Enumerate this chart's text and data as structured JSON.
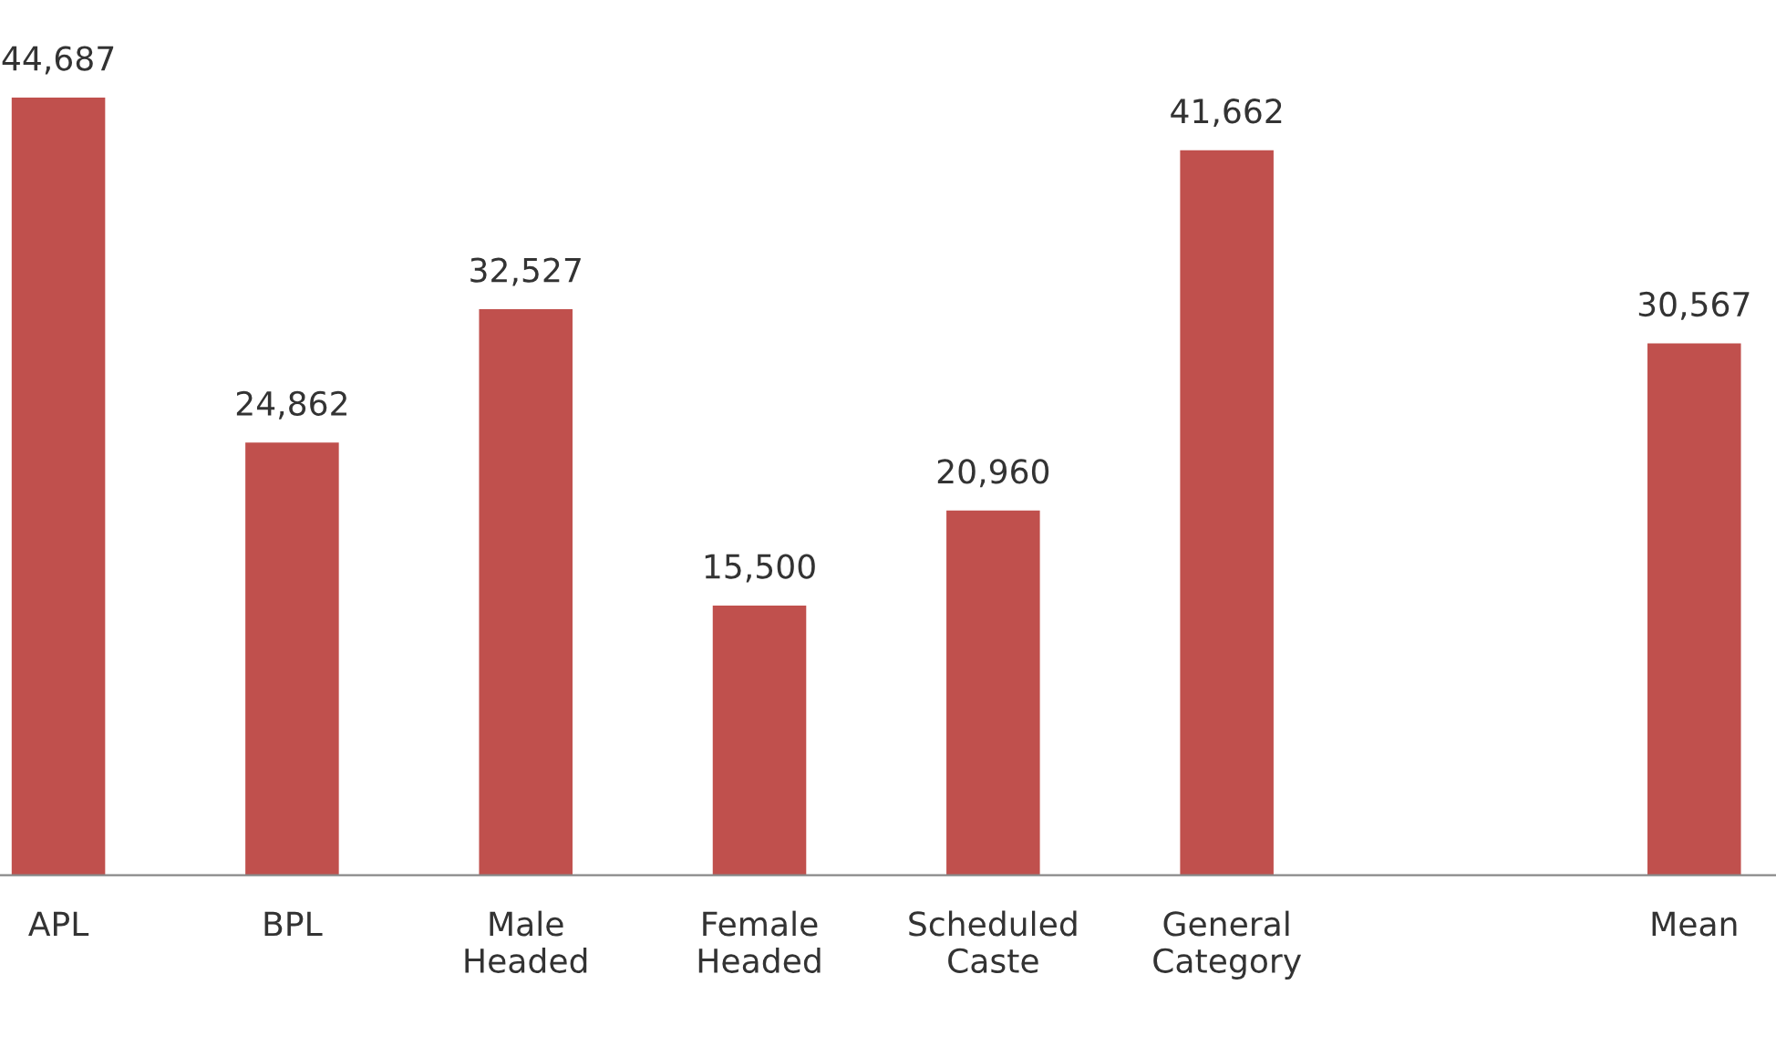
{
  "chart_data": {
    "type": "bar",
    "categories": [
      "APL",
      "BPL",
      "Male\nHeaded",
      "Female\nHeaded",
      "Scheduled\nCaste",
      "General\nCategory",
      null,
      "Mean"
    ],
    "values": [
      44687,
      24862,
      32527,
      15500,
      20960,
      41662,
      null,
      30567
    ],
    "value_labels": [
      "44,687",
      "24,862",
      "32,527",
      "15,500",
      "20,960",
      "41,662",
      null,
      "30,567"
    ],
    "color": "#c0504d",
    "grid": false,
    "legend": false,
    "tick_labels": "x"
  }
}
